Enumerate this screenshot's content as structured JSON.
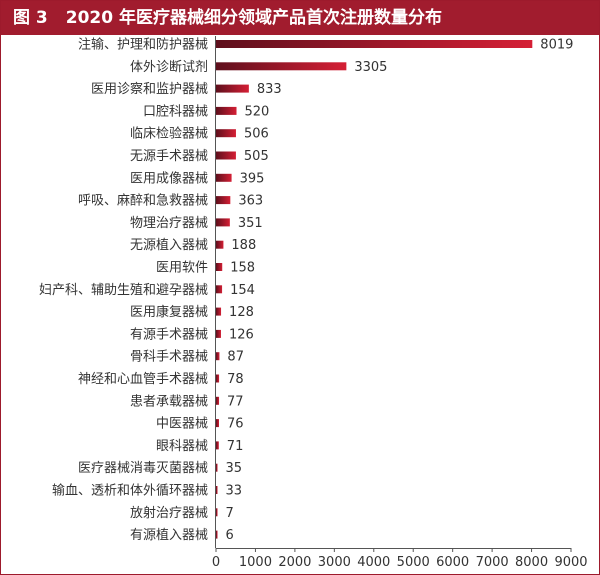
{
  "title": {
    "figure_number": "图 3",
    "text": "2020 年医疗器械细分领域产品首次注册数量分布"
  },
  "colors": {
    "title_bg": "#a11c2e",
    "bar_start": "#5e0f1c",
    "bar_end": "#d51f35",
    "axis": "#555555"
  },
  "chart_data": {
    "type": "bar",
    "orientation": "horizontal",
    "categories": [
      "注输、护理和防护器械",
      "体外诊断试剂",
      "医用诊察和监护器械",
      "口腔科器械",
      "临床检验器械",
      "无源手术器械",
      "医用成像器械",
      "呼吸、麻醉和急救器械",
      "物理治疗器械",
      "无源植入器械",
      "医用软件",
      "妇产科、辅助生殖和避孕器械",
      "医用康复器械",
      "有源手术器械",
      "骨科手术器械",
      "神经和心血管手术器械",
      "患者承载器械",
      "中医器械",
      "眼科器械",
      "医疗器械消毒灭菌器械",
      "输血、透析和体外循环器械",
      "放射治疗器械",
      "有源植入器械"
    ],
    "values": [
      8019,
      3305,
      833,
      520,
      506,
      505,
      395,
      363,
      351,
      188,
      158,
      154,
      128,
      126,
      87,
      78,
      77,
      76,
      71,
      35,
      33,
      7,
      6
    ],
    "xlim": [
      0,
      9000
    ],
    "xticks": [
      "0",
      "1000",
      "2000",
      "3000",
      "4000",
      "5000",
      "6000",
      "7000",
      "8000",
      "9000"
    ],
    "grid": false,
    "legend": "none"
  }
}
